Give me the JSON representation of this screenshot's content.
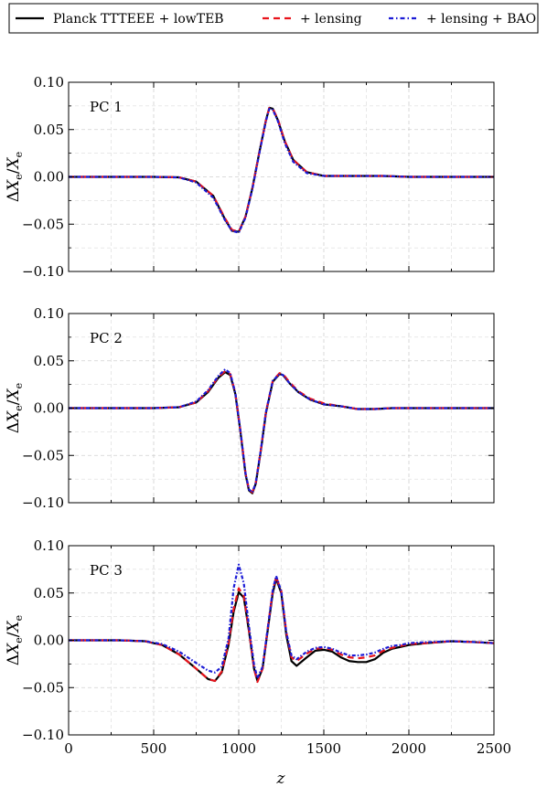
{
  "chart_data": [
    {
      "type": "line",
      "panel_label": "PC 1",
      "xlabel": "",
      "ylabel": "ΔX_e / X_e",
      "xlim": [
        0,
        2500
      ],
      "ylim": [
        -0.1,
        0.1
      ],
      "grid": true,
      "yticks": [
        "0.10",
        "0.05",
        "0.00",
        "−0.05",
        "−0.10"
      ],
      "series": [
        {
          "name": "Planck TTTEEE + lowTEB",
          "x": [
            0,
            500,
            650,
            750,
            850,
            920,
            960,
            1000,
            1040,
            1080,
            1120,
            1160,
            1180,
            1200,
            1230,
            1270,
            1320,
            1400,
            1500,
            1700,
            1850,
            2000,
            2500
          ],
          "y": [
            0,
            0,
            -0.0005,
            -0.005,
            -0.02,
            -0.045,
            -0.057,
            -0.058,
            -0.042,
            -0.012,
            0.025,
            0.06,
            0.073,
            0.072,
            0.06,
            0.038,
            0.018,
            0.005,
            0.001,
            0.001,
            0.001,
            0,
            0
          ]
        },
        {
          "name": "+ lensing",
          "x": [
            0,
            500,
            650,
            750,
            850,
            920,
            960,
            1000,
            1040,
            1080,
            1120,
            1160,
            1180,
            1200,
            1230,
            1270,
            1320,
            1400,
            1500,
            1700,
            1850,
            2000,
            2500
          ],
          "y": [
            0,
            0,
            -0.0005,
            -0.005,
            -0.02,
            -0.044,
            -0.056,
            -0.058,
            -0.042,
            -0.012,
            0.025,
            0.06,
            0.073,
            0.072,
            0.061,
            0.038,
            0.018,
            0.005,
            0.001,
            0.001,
            0.001,
            0,
            0
          ]
        },
        {
          "name": "+ lensing + BAO",
          "x": [
            0,
            500,
            650,
            750,
            850,
            920,
            960,
            1000,
            1040,
            1080,
            1120,
            1160,
            1180,
            1200,
            1230,
            1270,
            1320,
            1400,
            1500,
            1700,
            1850,
            2000,
            2500
          ],
          "y": [
            0,
            0,
            -0.0006,
            -0.006,
            -0.022,
            -0.046,
            -0.057,
            -0.059,
            -0.043,
            -0.013,
            0.024,
            0.059,
            0.072,
            0.071,
            0.059,
            0.036,
            0.016,
            0.004,
            0.001,
            0.001,
            0.001,
            0,
            0
          ]
        }
      ]
    },
    {
      "type": "line",
      "panel_label": "PC 2",
      "xlabel": "",
      "ylabel": "ΔX_e / X_e",
      "xlim": [
        0,
        2500
      ],
      "ylim": [
        -0.1,
        0.1
      ],
      "grid": true,
      "yticks": [
        "0.10",
        "0.05",
        "0.00",
        "−0.05",
        "−0.10"
      ],
      "series": [
        {
          "name": "Planck TTTEEE + lowTEB",
          "x": [
            0,
            500,
            650,
            750,
            820,
            880,
            920,
            950,
            980,
            1010,
            1040,
            1060,
            1080,
            1100,
            1130,
            1160,
            1200,
            1240,
            1260,
            1300,
            1350,
            1420,
            1500,
            1600,
            1700,
            1800,
            1900,
            2000,
            2500
          ],
          "y": [
            0,
            0,
            0.001,
            0.006,
            0.017,
            0.032,
            0.038,
            0.035,
            0.015,
            -0.025,
            -0.07,
            -0.087,
            -0.09,
            -0.08,
            -0.045,
            -0.005,
            0.028,
            0.036,
            0.035,
            0.026,
            0.017,
            0.009,
            0.004,
            0.002,
            -0.001,
            -0.001,
            0.0,
            0,
            0
          ]
        },
        {
          "name": "+ lensing",
          "x": [
            0,
            500,
            650,
            750,
            820,
            880,
            920,
            950,
            980,
            1010,
            1040,
            1060,
            1080,
            1100,
            1130,
            1160,
            1200,
            1240,
            1260,
            1300,
            1350,
            1420,
            1500,
            1600,
            1700,
            1800,
            1900,
            2000,
            2500
          ],
          "y": [
            0,
            0,
            0.001,
            0.006,
            0.018,
            0.033,
            0.039,
            0.036,
            0.016,
            -0.024,
            -0.069,
            -0.086,
            -0.089,
            -0.079,
            -0.044,
            -0.004,
            0.029,
            0.037,
            0.036,
            0.027,
            0.018,
            0.01,
            0.005,
            0.002,
            -0.001,
            -0.001,
            0.0,
            0,
            0
          ]
        },
        {
          "name": "+ lensing + BAO",
          "x": [
            0,
            500,
            650,
            750,
            820,
            880,
            920,
            950,
            980,
            1010,
            1040,
            1060,
            1080,
            1100,
            1130,
            1160,
            1200,
            1240,
            1260,
            1300,
            1350,
            1420,
            1500,
            1600,
            1700,
            1800,
            1900,
            2000,
            2500
          ],
          "y": [
            0,
            0,
            0.001,
            0.007,
            0.019,
            0.034,
            0.041,
            0.037,
            0.016,
            -0.024,
            -0.069,
            -0.086,
            -0.089,
            -0.079,
            -0.044,
            -0.004,
            0.029,
            0.036,
            0.035,
            0.026,
            0.017,
            0.009,
            0.004,
            0.002,
            -0.001,
            -0.001,
            0.0,
            0,
            0
          ]
        }
      ]
    },
    {
      "type": "line",
      "panel_label": "PC 3",
      "xlabel": "z",
      "ylabel": "ΔX_e / X_e",
      "xlim": [
        0,
        2500
      ],
      "ylim": [
        -0.1,
        0.1
      ],
      "grid": true,
      "xticks": [
        "0",
        "500",
        "1000",
        "1500",
        "2000",
        "2500"
      ],
      "yticks": [
        "0.10",
        "0.05",
        "0.00",
        "−0.05",
        "−0.10"
      ],
      "series": [
        {
          "name": "Planck TTTEEE + lowTEB",
          "x": [
            0,
            300,
            450,
            550,
            650,
            750,
            820,
            860,
            900,
            940,
            970,
            1000,
            1030,
            1060,
            1090,
            1110,
            1140,
            1170,
            1200,
            1220,
            1250,
            1280,
            1310,
            1340,
            1400,
            1450,
            1500,
            1550,
            1600,
            1650,
            1700,
            1750,
            1800,
            1850,
            1900,
            1950,
            2000,
            2100,
            2250,
            2400,
            2500
          ],
          "y": [
            0,
            0,
            -0.001,
            -0.005,
            -0.015,
            -0.03,
            -0.041,
            -0.043,
            -0.034,
            -0.005,
            0.03,
            0.051,
            0.045,
            0.01,
            -0.03,
            -0.043,
            -0.03,
            0.01,
            0.05,
            0.065,
            0.05,
            0.005,
            -0.022,
            -0.027,
            -0.018,
            -0.011,
            -0.01,
            -0.012,
            -0.018,
            -0.022,
            -0.023,
            -0.023,
            -0.02,
            -0.013,
            -0.009,
            -0.007,
            -0.005,
            -0.003,
            -0.001,
            -0.002,
            -0.003
          ]
        },
        {
          "name": "+ lensing",
          "x": [
            0,
            300,
            450,
            550,
            650,
            750,
            820,
            860,
            900,
            940,
            970,
            1000,
            1030,
            1060,
            1090,
            1110,
            1140,
            1170,
            1200,
            1220,
            1250,
            1280,
            1310,
            1340,
            1400,
            1450,
            1500,
            1550,
            1600,
            1650,
            1700,
            1750,
            1800,
            1850,
            1900,
            1950,
            2000,
            2100,
            2250,
            2400,
            2500
          ],
          "y": [
            0,
            0,
            -0.001,
            -0.005,
            -0.015,
            -0.03,
            -0.041,
            -0.043,
            -0.033,
            -0.003,
            0.033,
            0.055,
            0.047,
            0.011,
            -0.03,
            -0.044,
            -0.03,
            0.012,
            0.053,
            0.067,
            0.052,
            0.008,
            -0.018,
            -0.022,
            -0.014,
            -0.009,
            -0.008,
            -0.01,
            -0.015,
            -0.018,
            -0.019,
            -0.018,
            -0.016,
            -0.011,
            -0.008,
            -0.006,
            -0.004,
            -0.003,
            -0.001,
            -0.002,
            -0.003
          ]
        },
        {
          "name": "+ lensing + BAO",
          "x": [
            0,
            300,
            450,
            550,
            650,
            750,
            820,
            860,
            900,
            940,
            970,
            1000,
            1030,
            1060,
            1090,
            1110,
            1140,
            1170,
            1200,
            1220,
            1250,
            1280,
            1310,
            1340,
            1400,
            1450,
            1500,
            1550,
            1600,
            1650,
            1700,
            1750,
            1800,
            1850,
            1900,
            1950,
            2000,
            2100,
            2250,
            2400,
            2500
          ],
          "y": [
            0,
            0,
            -0.001,
            -0.004,
            -0.012,
            -0.024,
            -0.032,
            -0.034,
            -0.028,
            0.002,
            0.055,
            0.08,
            0.06,
            0.015,
            -0.026,
            -0.04,
            -0.028,
            0.012,
            0.053,
            0.068,
            0.052,
            0.008,
            -0.016,
            -0.02,
            -0.012,
            -0.008,
            -0.007,
            -0.009,
            -0.013,
            -0.016,
            -0.016,
            -0.015,
            -0.013,
            -0.009,
            -0.006,
            -0.005,
            -0.003,
            -0.002,
            -0.001,
            -0.002,
            -0.003
          ]
        }
      ]
    }
  ],
  "legend": {
    "placement": "top",
    "entries": [
      {
        "label": "Planck TTTEEE + lowTEB",
        "color": "#000000",
        "style": "solid"
      },
      {
        "label": "+ lensing",
        "color": "#e8131b",
        "style": "dashed"
      },
      {
        "label": "+ lensing + BAO",
        "color": "#1b1bd6",
        "style": "dashdot"
      }
    ]
  },
  "colors": {
    "planck": "#000000",
    "lensing": "#e8131b",
    "bao": "#1b1bd6",
    "grid": "#c8c8c8"
  }
}
